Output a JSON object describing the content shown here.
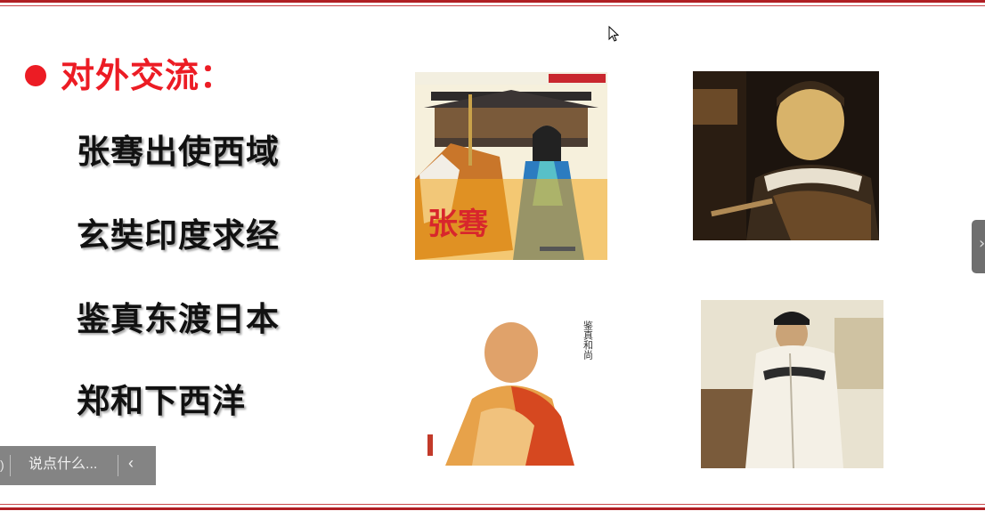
{
  "slide": {
    "title": "对外交流：",
    "items": [
      "张骞出使西域",
      "玄奘印度求经",
      "鉴真东渡日本",
      "郑和下西洋"
    ]
  },
  "images": {
    "zhangqian_cover": {
      "cover_title": "张骞",
      "icon": "book-cover-illustration"
    },
    "xuanzang_portrait": {
      "icon": "portrait-painting"
    },
    "jianzhen_portrait": {
      "caption": "鉴真和尚",
      "icon": "monk-illustration"
    },
    "zhenghe_portrait": {
      "icon": "portrait-painting"
    }
  },
  "overlay": {
    "comment_placeholder": "说点什么...",
    "left_glyph": ")",
    "collapse_arrow": "‹",
    "side_arrow": "›"
  },
  "colors": {
    "accent_red": "#ec1c24",
    "rule_red": "#b01e23",
    "text_dark": "#111111",
    "overlay_gray": "#6e6e6e"
  }
}
